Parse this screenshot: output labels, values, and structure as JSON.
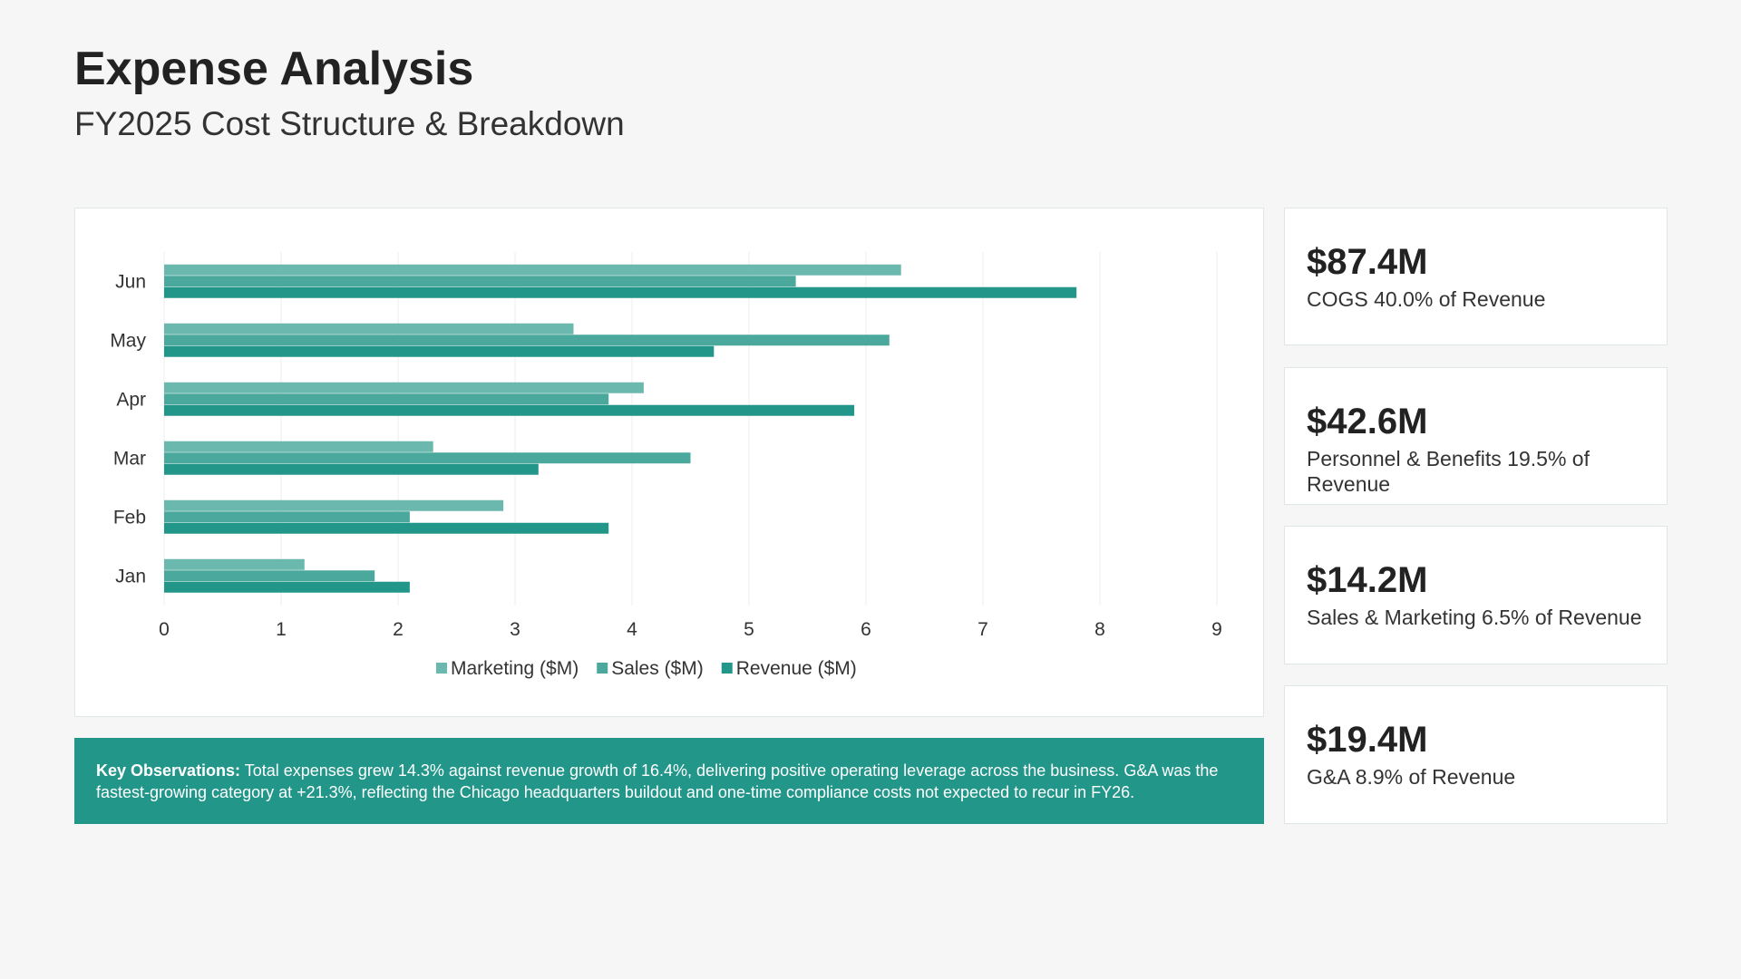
{
  "header": {
    "title": "Expense Analysis",
    "subtitle": "FY2025 Cost Structure & Breakdown"
  },
  "chart_data": {
    "type": "bar",
    "orientation": "horizontal",
    "categories": [
      "Jan",
      "Feb",
      "Mar",
      "Apr",
      "May",
      "Jun"
    ],
    "series": [
      {
        "name": "Marketing ($M)",
        "color": "#6bb8ae",
        "values": [
          1.2,
          2.9,
          2.3,
          4.1,
          3.5,
          6.3
        ]
      },
      {
        "name": "Sales ($M)",
        "color": "#4aa89c",
        "values": [
          1.8,
          2.1,
          4.5,
          3.8,
          6.2,
          5.4
        ]
      },
      {
        "name": "Revenue ($M)",
        "color": "#23968a",
        "values": [
          2.1,
          3.8,
          3.2,
          5.9,
          4.7,
          7.8
        ]
      }
    ],
    "xlim": [
      0,
      9
    ],
    "xticks": [
      "0",
      "1",
      "2",
      "3",
      "4",
      "5",
      "6",
      "7",
      "8",
      "9"
    ],
    "grid": true,
    "legend": "bottom"
  },
  "kpis": [
    {
      "value": "$87.4M",
      "label": "COGS 40.0% of Revenue"
    },
    {
      "value": "$42.6M",
      "label": "Personnel & Benefits 19.5% of Revenue"
    },
    {
      "value": "$14.2M",
      "label": "Sales & Marketing 6.5% of Revenue"
    },
    {
      "value": "$19.4M",
      "label": "G&A 8.9% of Revenue"
    }
  ],
  "observations": {
    "label": "Key Observations:",
    "text": " Total expenses grew 14.3% against revenue growth of 16.4%, delivering positive operating leverage across the business. G&A was the fastest-growing category at +21.3%, reflecting the Chicago headquarters buildout and one-time compliance costs not expected to recur in FY26."
  }
}
